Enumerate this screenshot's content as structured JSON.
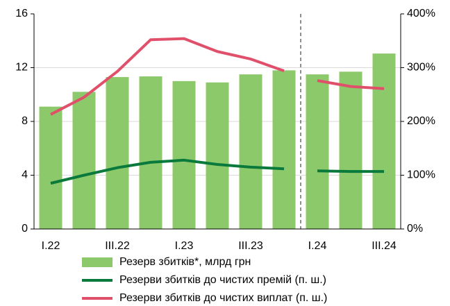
{
  "chart_data": {
    "type": "bar",
    "categories": [
      "I.22",
      null,
      "III.22",
      null,
      "I.23",
      null,
      "III.23",
      null,
      "I.24",
      null,
      "III.24"
    ],
    "series": [
      {
        "name": "Резерв збитків*, млрд грн",
        "type": "bar",
        "color": "#8cc96a",
        "values": [
          9.1,
          10.2,
          11.3,
          11.35,
          11.0,
          10.9,
          11.5,
          11.8,
          11.5,
          11.7,
          13.05
        ]
      },
      {
        "name": "Резерви збитків до чистих премій (п. ш.)",
        "type": "line",
        "axis": "y2",
        "color": "#0a7a3c",
        "values": [
          85,
          100,
          114,
          124,
          128,
          120,
          115,
          112,
          108,
          107,
          107
        ]
      },
      {
        "name": "Резерви збитків до чистих виплат (п. ш.)",
        "type": "line",
        "axis": "y2",
        "color": "#e0506a",
        "values": [
          213,
          245,
          293,
          352,
          354,
          330,
          316,
          294,
          276,
          265,
          261
        ]
      }
    ],
    "ylim": [
      0,
      16
    ],
    "yticks": [
      0,
      4,
      8,
      12,
      16
    ],
    "y2lim": [
      0,
      400
    ],
    "y2ticks": [
      {
        "value": 0,
        "label": "0%"
      },
      {
        "value": 100,
        "label": "100%"
      },
      {
        "value": 200,
        "label": "200%"
      },
      {
        "value": 300,
        "label": "300%"
      },
      {
        "value": 400,
        "label": "400%"
      }
    ],
    "grid": true,
    "divider_after": 7,
    "legend": "bottom"
  }
}
